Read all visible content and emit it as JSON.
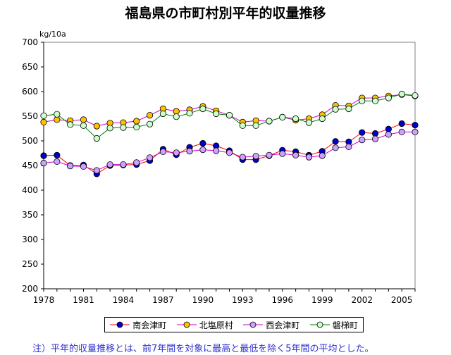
{
  "chart_data": {
    "type": "line",
    "title": "福島県の市町村別平年的収量推移",
    "ylabel": "kg/10a",
    "xlabel": "",
    "ylim": [
      200,
      700
    ],
    "yticks": [
      200,
      250,
      300,
      350,
      400,
      450,
      500,
      550,
      600,
      650,
      700
    ],
    "xlim": [
      1978,
      2006
    ],
    "xticks": [
      "1978",
      "1981",
      "1984",
      "1987",
      "1990",
      "1993",
      "1996",
      "1999",
      "2002",
      "2005"
    ],
    "x": [
      1978,
      1979,
      1980,
      1981,
      1982,
      1983,
      1984,
      1985,
      1986,
      1987,
      1988,
      1989,
      1990,
      1991,
      1992,
      1993,
      1994,
      1995,
      1996,
      1997,
      1998,
      1999,
      2000,
      2001,
      2002,
      2003,
      2004,
      2005,
      2006
    ],
    "series": [
      {
        "name": "南会津町",
        "line_color": "#ff0000",
        "marker_color": "#0000cc",
        "values": [
          470,
          471,
          450,
          451,
          433,
          450,
          451,
          452,
          460,
          483,
          472,
          487,
          495,
          490,
          480,
          462,
          462,
          470,
          481,
          478,
          471,
          479,
          499,
          498,
          517,
          515,
          524,
          535,
          532
        ]
      },
      {
        "name": "北塩原村",
        "line_color": "#cc00cc",
        "marker_color": "#ffc000",
        "values": [
          538,
          543,
          541,
          543,
          530,
          536,
          537,
          540,
          552,
          565,
          560,
          563,
          570,
          561,
          552,
          538,
          541,
          540,
          548,
          542,
          545,
          553,
          572,
          571,
          587,
          587,
          591,
          594,
          591
        ]
      },
      {
        "name": "西会津町",
        "line_color": "#cc00cc",
        "marker_color": "#d0a0ff",
        "values": [
          455,
          458,
          449,
          448,
          440,
          452,
          452,
          456,
          466,
          478,
          476,
          479,
          482,
          480,
          476,
          467,
          469,
          471,
          474,
          471,
          467,
          470,
          486,
          488,
          502,
          504,
          513,
          518,
          518
        ]
      },
      {
        "name": "磐梯町",
        "line_color": "#008000",
        "marker_color": "#ccffcc",
        "values": [
          551,
          554,
          533,
          531,
          505,
          526,
          527,
          528,
          534,
          555,
          549,
          556,
          565,
          555,
          552,
          531,
          531,
          540,
          548,
          545,
          537,
          545,
          564,
          565,
          581,
          581,
          587,
          595,
          592
        ]
      }
    ],
    "legend_position": "bottom",
    "grid": false
  },
  "footnote": "注）平年的収量推移とは、前7年間を対象に最高と最低を除く5年間の平均とした。"
}
